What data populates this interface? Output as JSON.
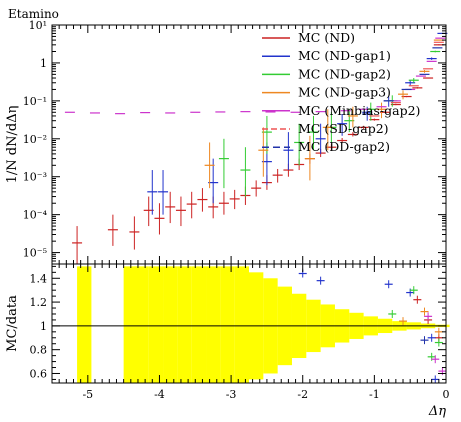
{
  "chart_data": {
    "type": "scatter",
    "title": "Etamino",
    "xlabel": "Δη",
    "top_panel": {
      "ylabel": "1/N dN/dΔη",
      "yscale": "log",
      "ylim": [
        5e-06,
        10
      ],
      "yticks": [
        "10⁻⁵",
        "10⁻⁴",
        "10⁻³",
        "10⁻²",
        "10⁻¹",
        "1",
        "10¹"
      ]
    },
    "ratio_panel": {
      "ylabel": "MC/data",
      "ylim": [
        0.52,
        1.52
      ],
      "yticks": [
        "0.6",
        "0.8",
        "1",
        "1.2",
        "1.4"
      ]
    },
    "xlim": [
      -5.5,
      0
    ],
    "xticks": [
      "-5",
      "-4",
      "-3",
      "-2",
      "-1",
      "0"
    ],
    "legend_position": "top-right",
    "series": [
      {
        "name": "MC (ND)",
        "color": "#cc2222",
        "points": [
          {
            "x": -5.15,
            "y": 1.8e-05,
            "lo": 5e-06,
            "hi": 5e-05
          },
          {
            "x": -4.65,
            "y": 4e-05,
            "lo": 1.5e-05,
            "hi": 0.0001
          },
          {
            "x": -4.35,
            "y": 3.5e-05,
            "lo": 1.2e-05,
            "hi": 9e-05
          },
          {
            "x": -4.15,
            "y": 0.00013,
            "lo": 5e-05,
            "hi": 0.0003
          },
          {
            "x": -4.0,
            "y": 8e-05,
            "lo": 3e-05,
            "hi": 0.0002
          },
          {
            "x": -3.85,
            "y": 0.00016,
            "lo": 6e-05,
            "hi": 0.0004
          },
          {
            "x": -3.7,
            "y": 0.00013,
            "lo": 5e-05,
            "hi": 0.0003
          },
          {
            "x": -3.55,
            "y": 0.00019,
            "lo": 8e-05,
            "hi": 0.0004
          },
          {
            "x": -3.4,
            "y": 0.00025,
            "lo": 0.00012,
            "hi": 0.0005
          },
          {
            "x": -3.25,
            "y": 0.00016,
            "lo": 8e-05,
            "hi": 0.0003
          },
          {
            "x": -3.1,
            "y": 0.0002,
            "lo": 0.0001,
            "hi": 0.0004
          },
          {
            "x": -2.95,
            "y": 0.00026,
            "lo": 0.00014,
            "hi": 0.00045
          },
          {
            "x": -2.8,
            "y": 0.00032,
            "lo": 0.00018,
            "hi": 0.00055
          },
          {
            "x": -2.65,
            "y": 0.0005,
            "lo": 0.0003,
            "hi": 0.0008
          },
          {
            "x": -2.5,
            "y": 0.0007,
            "lo": 0.00045,
            "hi": 0.0011
          },
          {
            "x": -2.35,
            "y": 0.0011,
            "lo": 0.0007,
            "hi": 0.0016
          },
          {
            "x": -2.2,
            "y": 0.0015,
            "lo": 0.001,
            "hi": 0.0022
          },
          {
            "x": -2.05,
            "y": 0.0021,
            "lo": 0.0015,
            "hi": 0.003
          },
          {
            "x": -1.9,
            "y": 0.003,
            "lo": 0.0022,
            "hi": 0.004
          },
          {
            "x": -1.75,
            "y": 0.0042,
            "lo": 0.0033,
            "hi": 0.0054
          },
          {
            "x": -1.6,
            "y": 0.006,
            "lo": 0.005,
            "hi": 0.0073
          },
          {
            "x": -1.45,
            "y": 0.009,
            "lo": 0.0078,
            "hi": 0.0105
          },
          {
            "x": -1.3,
            "y": 0.013,
            "lo": 0.0115,
            "hi": 0.015
          },
          {
            "x": -1.15,
            "y": 0.02,
            "lo": 0.018,
            "hi": 0.022
          },
          {
            "x": -1.0,
            "y": 0.032,
            "lo": 0.03,
            "hi": 0.034
          },
          {
            "x": -0.85,
            "y": 0.05,
            "lo": 0.048,
            "hi": 0.053
          },
          {
            "x": -0.7,
            "y": 0.08,
            "lo": 0.077,
            "hi": 0.084
          },
          {
            "x": -0.55,
            "y": 0.13,
            "lo": 0.125,
            "hi": 0.135
          },
          {
            "x": -0.4,
            "y": 0.22,
            "lo": 0.21,
            "hi": 0.23
          },
          {
            "x": -0.25,
            "y": 0.4,
            "lo": 0.39,
            "hi": 0.41
          },
          {
            "x": -0.1,
            "y": 3.0,
            "lo": 2.9,
            "hi": 3.1
          }
        ],
        "ratio": [
          {
            "x": -0.4,
            "y": 1.22
          },
          {
            "x": -0.25,
            "y": 1.05
          },
          {
            "x": -0.1,
            "y": 0.9
          }
        ]
      },
      {
        "name": "MC (ND-gap1)",
        "color": "#2233cc",
        "points": [
          {
            "x": -4.1,
            "y": 0.0004,
            "lo": 0.0001,
            "hi": 0.0015
          },
          {
            "x": -3.95,
            "y": 0.0004,
            "lo": 0.0001,
            "hi": 0.0015
          },
          {
            "x": -3.25,
            "y": 0.0007,
            "lo": 0.0002,
            "hi": 0.003
          },
          {
            "x": -2.5,
            "y": 0.0025,
            "lo": 0.0006,
            "hi": 0.008
          },
          {
            "x": -2.2,
            "y": 0.005,
            "lo": 0.0015,
            "hi": 0.015
          },
          {
            "x": -1.75,
            "y": 0.01,
            "lo": 0.004,
            "hi": 0.025
          },
          {
            "x": -1.45,
            "y": 0.025,
            "lo": 0.012,
            "hi": 0.045
          },
          {
            "x": -1.1,
            "y": 0.05,
            "lo": 0.03,
            "hi": 0.07
          },
          {
            "x": -0.8,
            "y": 0.1,
            "lo": 0.07,
            "hi": 0.13
          },
          {
            "x": -0.5,
            "y": 0.3,
            "lo": 0.25,
            "hi": 0.35
          },
          {
            "x": -0.2,
            "y": 1.3,
            "lo": 1.2,
            "hi": 1.4
          },
          {
            "x": -0.05,
            "y": 6.0,
            "lo": 5.8,
            "hi": 6.2
          }
        ],
        "ratio": [
          {
            "x": -2.0,
            "y": 1.44
          },
          {
            "x": -1.75,
            "y": 1.38
          },
          {
            "x": -0.8,
            "y": 1.35
          },
          {
            "x": -0.5,
            "y": 1.28
          },
          {
            "x": -0.2,
            "y": 0.9
          },
          {
            "x": -0.15,
            "y": 0.55
          }
        ]
      },
      {
        "name": "MC (ND-gap2)",
        "color": "#33cc33",
        "points": [
          {
            "x": -3.1,
            "y": 0.003,
            "lo": 0.0005,
            "hi": 0.01
          },
          {
            "x": -2.8,
            "y": 0.0015,
            "lo": 0.0003,
            "hi": 0.006
          },
          {
            "x": -2.5,
            "y": 0.015,
            "lo": 0.004,
            "hi": 0.04
          },
          {
            "x": -2.05,
            "y": 0.008,
            "lo": 0.002,
            "hi": 0.025
          },
          {
            "x": -1.85,
            "y": 0.015,
            "lo": 0.005,
            "hi": 0.04
          },
          {
            "x": -1.6,
            "y": 0.02,
            "lo": 0.008,
            "hi": 0.05
          },
          {
            "x": -1.35,
            "y": 0.03,
            "lo": 0.015,
            "hi": 0.06
          },
          {
            "x": -1.05,
            "y": 0.06,
            "lo": 0.03,
            "hi": 0.09
          },
          {
            "x": -0.75,
            "y": 0.1,
            "lo": 0.07,
            "hi": 0.14
          },
          {
            "x": -0.45,
            "y": 0.35,
            "lo": 0.3,
            "hi": 0.4
          },
          {
            "x": -0.15,
            "y": 2.0,
            "lo": 1.9,
            "hi": 2.1
          }
        ],
        "ratio": [
          {
            "x": -0.75,
            "y": 1.1
          },
          {
            "x": -0.45,
            "y": 1.3
          },
          {
            "x": -0.2,
            "y": 0.74
          },
          {
            "x": -0.1,
            "y": 0.86
          }
        ]
      },
      {
        "name": "MC (ND-gap3)",
        "color": "#ee8822",
        "points": [
          {
            "x": -3.3,
            "y": 0.002,
            "lo": 0.0005,
            "hi": 0.008
          },
          {
            "x": -2.55,
            "y": 0.005,
            "lo": 0.001,
            "hi": 0.02
          },
          {
            "x": -1.9,
            "y": 0.003,
            "lo": 0.0008,
            "hi": 0.012
          },
          {
            "x": -1.65,
            "y": 0.02,
            "lo": 0.005,
            "hi": 0.06
          },
          {
            "x": -1.3,
            "y": 0.04,
            "lo": 0.02,
            "hi": 0.07
          },
          {
            "x": -0.9,
            "y": 0.06,
            "lo": 0.035,
            "hi": 0.09
          },
          {
            "x": -0.6,
            "y": 0.15,
            "lo": 0.11,
            "hi": 0.19
          },
          {
            "x": -0.3,
            "y": 0.6,
            "lo": 0.55,
            "hi": 0.65
          },
          {
            "x": -0.1,
            "y": 4.0,
            "lo": 3.9,
            "hi": 4.1
          }
        ],
        "ratio": [
          {
            "x": -0.6,
            "y": 1.04
          },
          {
            "x": -0.3,
            "y": 1.12
          },
          {
            "x": -0.1,
            "y": 0.95
          }
        ]
      },
      {
        "name": "MC (Minbias-gap2)",
        "color": "#cc33cc",
        "points": [
          {
            "x": -5.25,
            "y": 0.05
          },
          {
            "x": -4.9,
            "y": 0.048
          },
          {
            "x": -4.55,
            "y": 0.046
          },
          {
            "x": -4.2,
            "y": 0.049
          },
          {
            "x": -3.85,
            "y": 0.048
          },
          {
            "x": -3.5,
            "y": 0.05
          },
          {
            "x": -3.15,
            "y": 0.051
          },
          {
            "x": -2.8,
            "y": 0.052
          },
          {
            "x": -2.45,
            "y": 0.051
          },
          {
            "x": -2.1,
            "y": 0.05
          },
          {
            "x": -1.75,
            "y": 0.052
          },
          {
            "x": -1.4,
            "y": 0.055
          },
          {
            "x": -1.15,
            "y": 0.06
          },
          {
            "x": -0.9,
            "y": 0.07
          },
          {
            "x": -0.7,
            "y": 0.1
          },
          {
            "x": -0.5,
            "y": 0.2
          },
          {
            "x": -0.35,
            "y": 0.45
          },
          {
            "x": -0.2,
            "y": 1.1
          },
          {
            "x": -0.08,
            "y": 4.5
          }
        ],
        "ratio": [
          {
            "x": -0.25,
            "y": 1.08
          },
          {
            "x": -0.15,
            "y": 0.72
          },
          {
            "x": -0.05,
            "y": 0.62
          }
        ]
      },
      {
        "name": "MC (SD-gap2)",
        "color": "#ee5555",
        "points": [
          {
            "x": -1.0,
            "y": 0.04
          },
          {
            "x": -0.7,
            "y": 0.09
          },
          {
            "x": -0.45,
            "y": 0.25
          },
          {
            "x": -0.25,
            "y": 0.7
          },
          {
            "x": -0.1,
            "y": 3.5
          }
        ],
        "ratio": []
      },
      {
        "name": "MC (DD-gap2)",
        "color": "#2233aa",
        "points": [
          {
            "x": -1.1,
            "y": 0.045
          },
          {
            "x": -0.8,
            "y": 0.1
          },
          {
            "x": -0.55,
            "y": 0.2
          },
          {
            "x": -0.3,
            "y": 0.5
          },
          {
            "x": -0.12,
            "y": 2.5
          }
        ],
        "ratio": [
          {
            "x": -0.3,
            "y": 0.88
          }
        ]
      }
    ],
    "data_band": {
      "color": "#ffff00",
      "points": [
        {
          "x": -5.05,
          "err": 0.5
        },
        {
          "x": -4.4,
          "err": 0.5
        },
        {
          "x": -4.25,
          "err": 0.5
        },
        {
          "x": -4.05,
          "err": 0.5
        },
        {
          "x": -3.85,
          "err": 0.5
        },
        {
          "x": -3.65,
          "err": 0.5
        },
        {
          "x": -3.45,
          "err": 0.5
        },
        {
          "x": -3.25,
          "err": 0.5
        },
        {
          "x": -3.05,
          "err": 0.5
        },
        {
          "x": -2.85,
          "err": 0.5
        },
        {
          "x": -2.65,
          "err": 0.45
        },
        {
          "x": -2.45,
          "err": 0.4
        },
        {
          "x": -2.25,
          "err": 0.33
        },
        {
          "x": -2.05,
          "err": 0.27
        },
        {
          "x": -1.85,
          "err": 0.22
        },
        {
          "x": -1.65,
          "err": 0.18
        },
        {
          "x": -1.45,
          "err": 0.14
        },
        {
          "x": -1.25,
          "err": 0.11
        },
        {
          "x": -1.05,
          "err": 0.08
        },
        {
          "x": -0.85,
          "err": 0.06
        },
        {
          "x": -0.65,
          "err": 0.04
        },
        {
          "x": -0.45,
          "err": 0.03
        },
        {
          "x": -0.25,
          "err": 0.02
        },
        {
          "x": -0.05,
          "err": 0.01
        }
      ]
    }
  }
}
